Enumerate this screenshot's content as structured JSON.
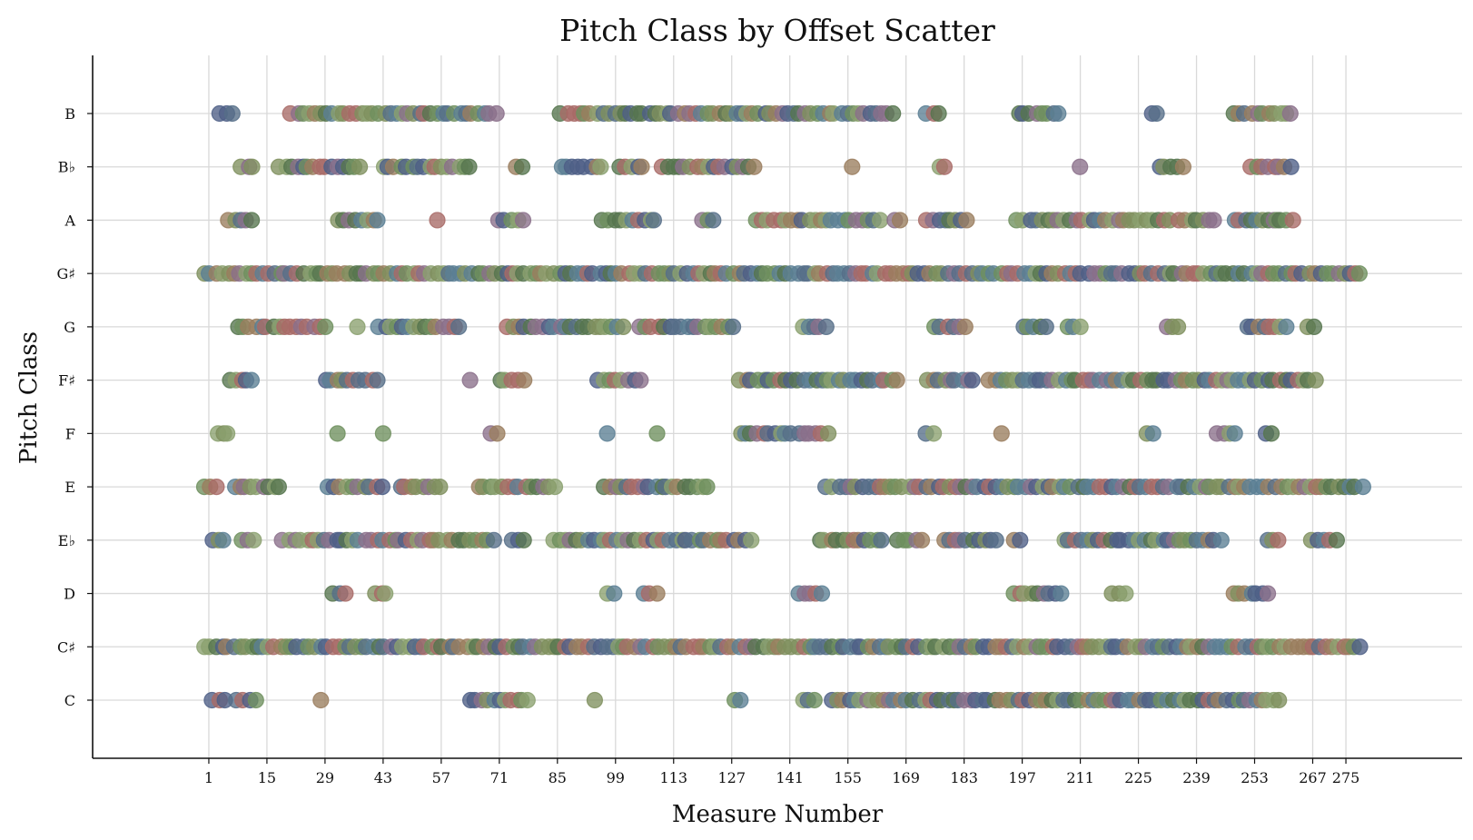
{
  "chart_data": {
    "type": "scatter",
    "title": "Pitch Class by Offset Scatter",
    "xlabel": "Measure Number",
    "ylabel": "Pitch Class",
    "xlim": [
      -27,
      303
    ],
    "x_ticks": [
      1,
      15,
      29,
      43,
      57,
      71,
      85,
      99,
      113,
      127,
      141,
      155,
      169,
      183,
      197,
      211,
      225,
      239,
      253,
      267,
      275
    ],
    "y_categories": [
      "C",
      "C♯",
      "D",
      "E♭",
      "E",
      "F",
      "F♯",
      "G",
      "G♯",
      "A",
      "B♭",
      "B"
    ],
    "grid": true,
    "marker_colors": [
      "#4e5f86",
      "#5b7f94",
      "#a86a66",
      "#6e8f5e",
      "#7f8f5e",
      "#566e88",
      "#8aa06e",
      "#56754e",
      "#8a6f8a",
      "#9a7d5e"
    ],
    "series": [
      {
        "name": "B",
        "ranges": [
          [
            4,
            7
          ],
          [
            21,
            71
          ],
          [
            86,
            166
          ],
          [
            174,
            178
          ],
          [
            196,
            207
          ],
          [
            228,
            230
          ],
          [
            248,
            262
          ]
        ],
        "points": []
      },
      {
        "name": "B♭",
        "ranges": [
          [
            9,
            12
          ],
          [
            18,
            38
          ],
          [
            43,
            64
          ],
          [
            75,
            77
          ],
          [
            86,
            97
          ],
          [
            100,
            106
          ],
          [
            110,
            133
          ],
          [
            177,
            179
          ],
          [
            211,
            211
          ],
          [
            230,
            236
          ],
          [
            252,
            263
          ]
        ],
        "points": [
          156
        ]
      },
      {
        "name": "A",
        "ranges": [
          [
            6,
            13
          ],
          [
            32,
            43
          ],
          [
            56,
            57
          ],
          [
            71,
            78
          ],
          [
            96,
            110
          ],
          [
            120,
            123
          ],
          [
            133,
            163
          ],
          [
            166,
            168
          ],
          [
            174,
            184
          ],
          [
            196,
            212
          ],
          [
            213,
            233
          ],
          [
            235,
            244
          ],
          [
            248,
            258
          ],
          [
            258,
            263
          ]
        ],
        "points": []
      },
      {
        "name": "G♯",
        "ranges": [
          [
            0,
            280
          ]
        ],
        "points": []
      },
      {
        "name": "G",
        "ranges": [
          [
            8,
            30
          ],
          [
            37,
            38
          ],
          [
            42,
            62
          ],
          [
            73,
            102
          ],
          [
            105,
            128
          ],
          [
            144,
            150
          ],
          [
            176,
            184
          ],
          [
            197,
            203
          ],
          [
            208,
            211
          ],
          [
            232,
            236
          ],
          [
            251,
            262
          ],
          [
            266,
            268
          ]
        ],
        "points": []
      },
      {
        "name": "F♯",
        "ranges": [
          [
            6,
            13
          ],
          [
            29,
            42
          ],
          [
            64,
            65
          ],
          [
            71,
            78
          ],
          [
            95,
            105
          ],
          [
            129,
            168
          ],
          [
            174,
            186
          ],
          [
            189,
            268
          ]
        ],
        "points": []
      },
      {
        "name": "F",
        "ranges": [
          [
            3,
            6
          ],
          [
            69,
            71
          ],
          [
            129,
            135
          ],
          [
            136,
            151
          ],
          [
            174,
            176
          ],
          [
            227,
            229
          ],
          [
            244,
            249
          ],
          [
            256,
            258
          ]
        ],
        "points": [
          32,
          43,
          97,
          109,
          192
        ]
      },
      {
        "name": "E",
        "ranges": [
          [
            0,
            3
          ],
          [
            7,
            19
          ],
          [
            30,
            43
          ],
          [
            47,
            58
          ],
          [
            66,
            85
          ],
          [
            96,
            122
          ],
          [
            150,
            280
          ]
        ],
        "points": []
      },
      {
        "name": "E♭",
        "ranges": [
          [
            2,
            5
          ],
          [
            9,
            13
          ],
          [
            19,
            70
          ],
          [
            74,
            77
          ],
          [
            84,
            133
          ],
          [
            148,
            164
          ],
          [
            167,
            174
          ],
          [
            178,
            192
          ],
          [
            195,
            197
          ],
          [
            207,
            241
          ],
          [
            242,
            245
          ],
          [
            256,
            259
          ],
          [
            267,
            273
          ]
        ],
        "points": []
      },
      {
        "name": "D",
        "ranges": [
          [
            31,
            35
          ],
          [
            41,
            44
          ],
          [
            97,
            99
          ],
          [
            106,
            110
          ],
          [
            143,
            150
          ],
          [
            195,
            207
          ],
          [
            219,
            222
          ],
          [
            248,
            257
          ]
        ],
        "points": []
      },
      {
        "name": "C♯",
        "ranges": [
          [
            0,
            280
          ]
        ],
        "points": []
      },
      {
        "name": "C",
        "ranges": [
          [
            2,
            5
          ],
          [
            8,
            13
          ],
          [
            64,
            79
          ],
          [
            128,
            130
          ],
          [
            144,
            147
          ],
          [
            151,
            260
          ]
        ],
        "points": [
          28,
          94
        ]
      }
    ]
  }
}
